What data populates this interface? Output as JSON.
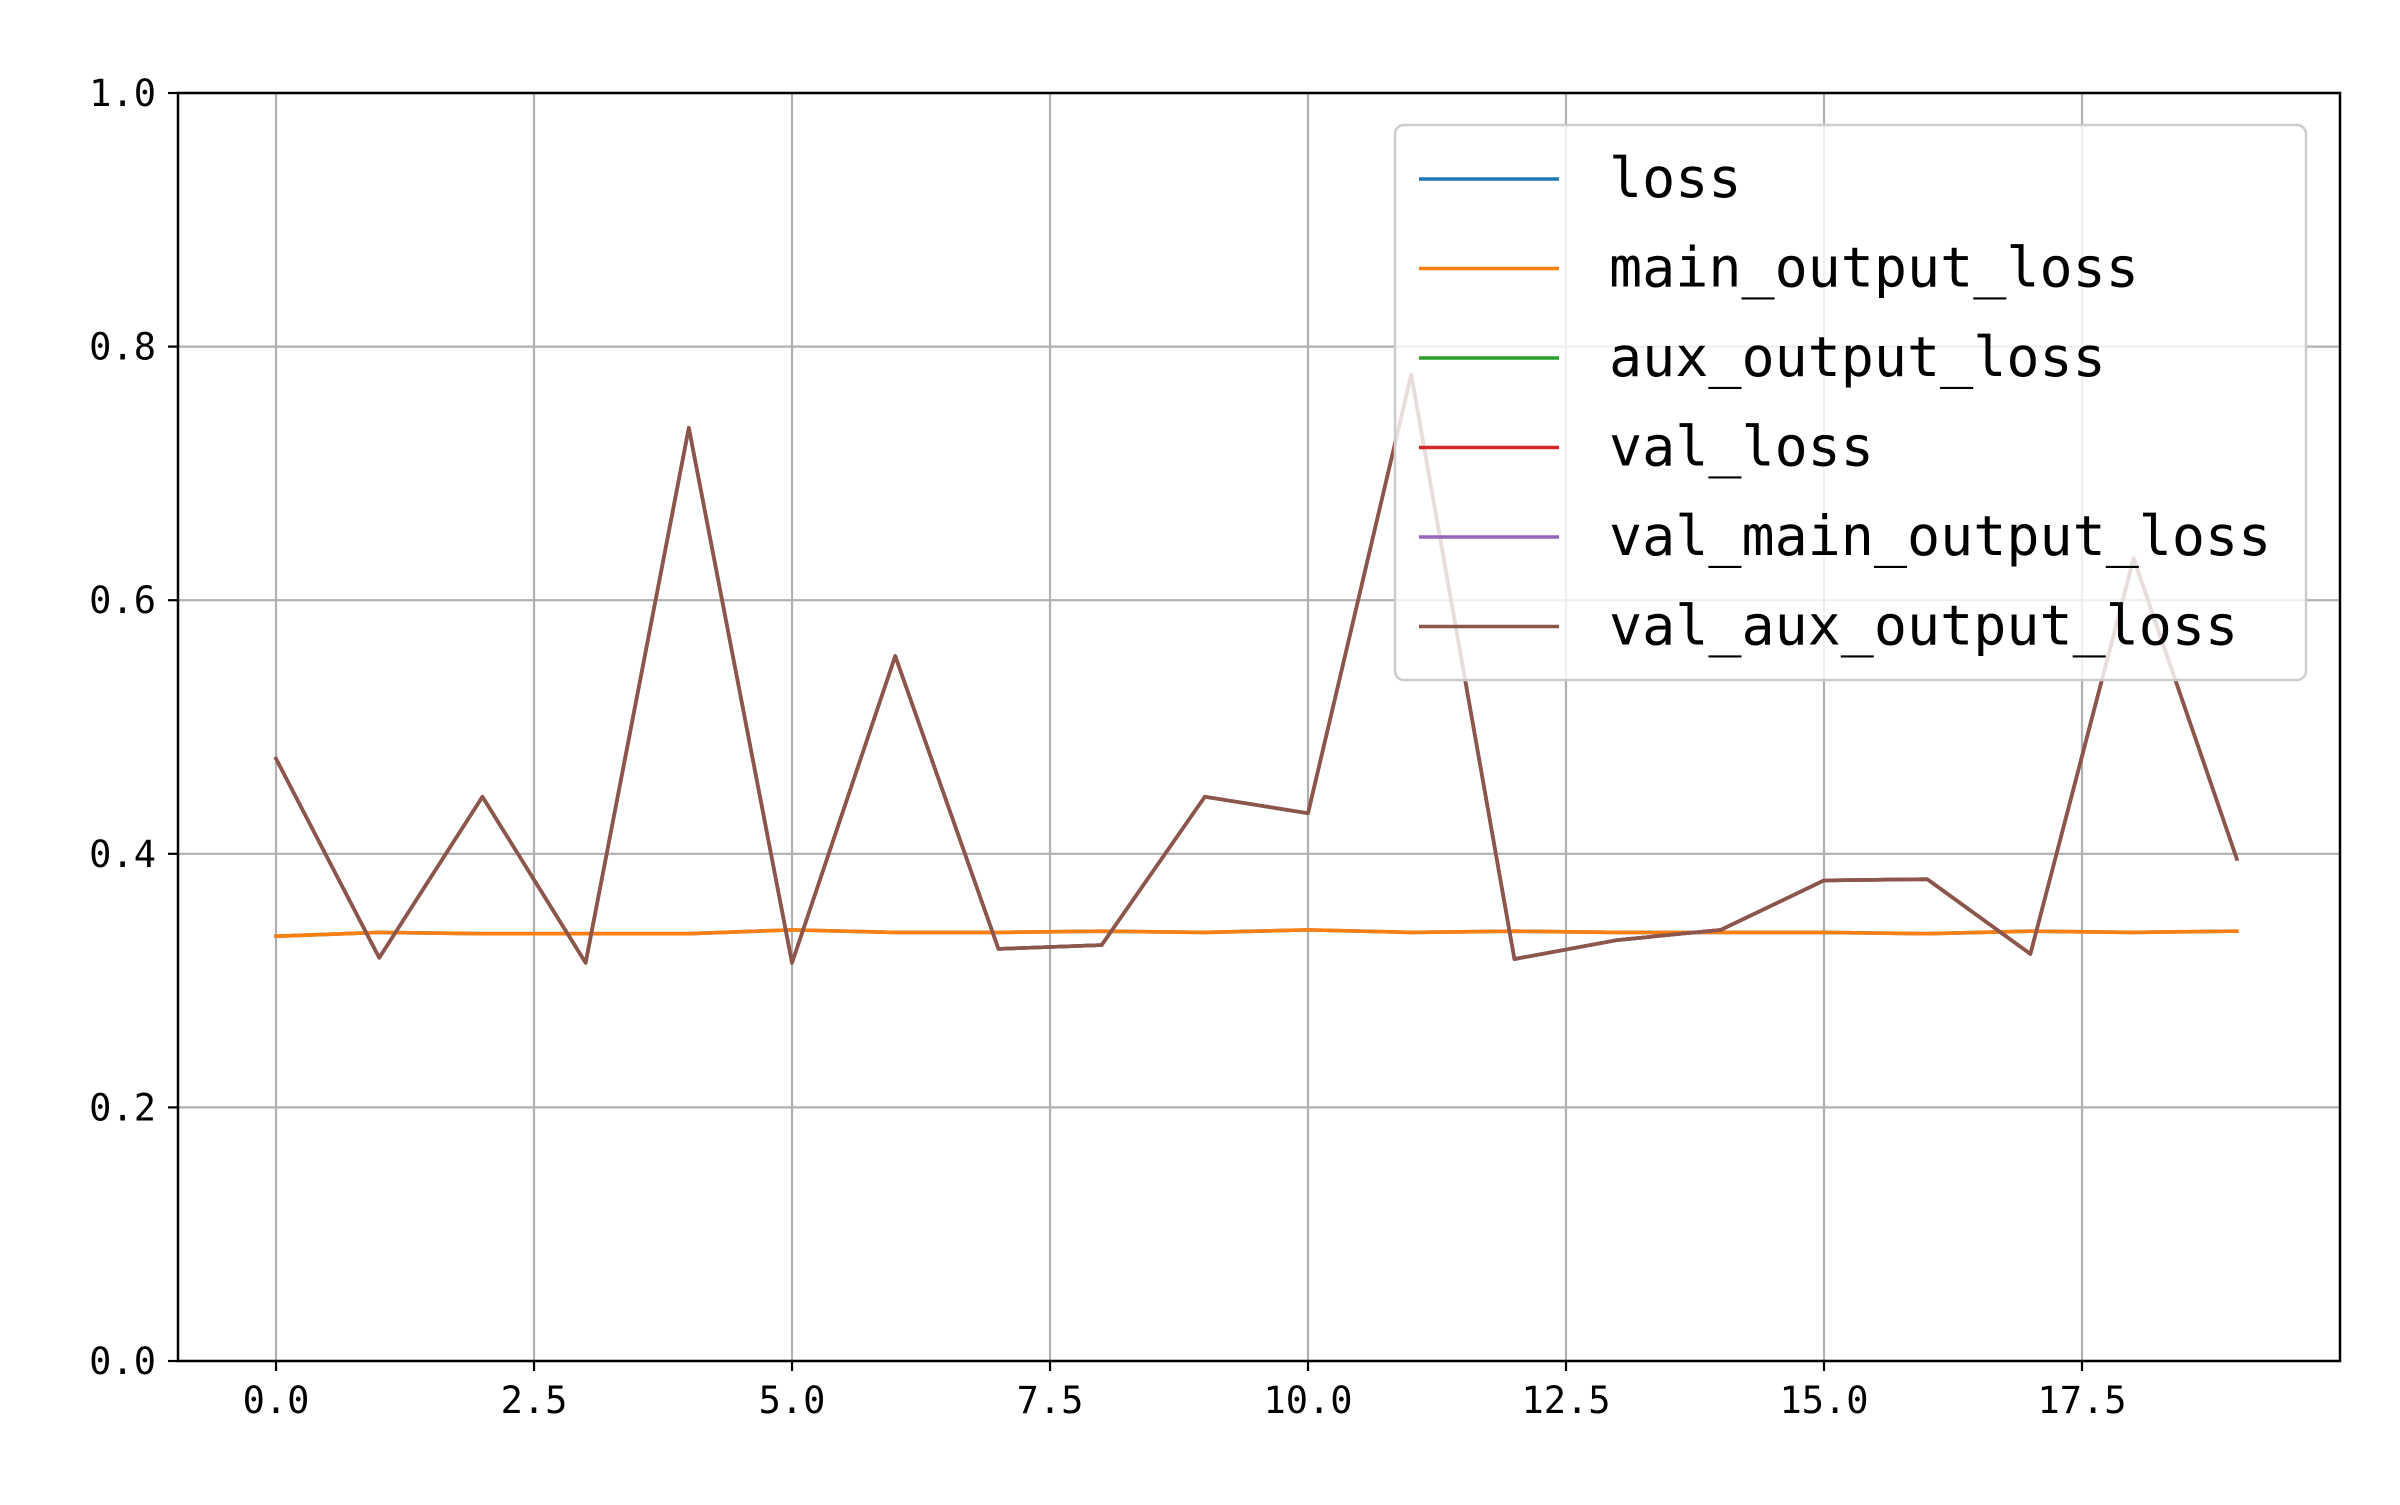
{
  "chart_data": {
    "type": "line",
    "title": "",
    "xlabel": "",
    "ylabel": "",
    "xlim": [
      -0.95,
      20
    ],
    "ylim": [
      0.0,
      1.0
    ],
    "x_ticks": [
      0.0,
      2.5,
      5.0,
      7.5,
      10.0,
      12.5,
      15.0,
      17.5
    ],
    "x_tick_labels": [
      "0.0",
      "2.5",
      "5.0",
      "7.5",
      "10.0",
      "12.5",
      "15.0",
      "17.5"
    ],
    "y_ticks": [
      0.0,
      0.2,
      0.4,
      0.6,
      0.8,
      1.0
    ],
    "y_tick_labels": [
      "0.0",
      "0.2",
      "0.4",
      "0.6",
      "0.8",
      "1.0"
    ],
    "grid": true,
    "legend_position": "top-right",
    "x": [
      0,
      1,
      2,
      3,
      4,
      5,
      6,
      7,
      8,
      9,
      10,
      11,
      12,
      13,
      14,
      15,
      16,
      17,
      18,
      19
    ],
    "series": [
      {
        "name": "loss",
        "color": "#1f77b4",
        "values": [
          0.335,
          0.338,
          0.337,
          0.337,
          0.337,
          0.34,
          0.338,
          0.338,
          0.339,
          0.338,
          0.34,
          0.338,
          0.339,
          0.338,
          0.338,
          0.338,
          0.337,
          0.339,
          0.338,
          0.339
        ]
      },
      {
        "name": "main_output_loss",
        "color": "#ff7f0e",
        "values": [
          0.335,
          0.338,
          0.337,
          0.337,
          0.337,
          0.34,
          0.338,
          0.338,
          0.339,
          0.338,
          0.34,
          0.338,
          0.339,
          0.338,
          0.338,
          0.338,
          0.337,
          0.339,
          0.338,
          0.339
        ]
      },
      {
        "name": "aux_output_loss",
        "color": "#2ca02c",
        "values": [
          0.475,
          0.318,
          0.445,
          0.314,
          0.736,
          0.314,
          0.556,
          0.325,
          0.328,
          0.445,
          0.432,
          0.778,
          0.317,
          0.332,
          0.34,
          0.379,
          0.38,
          0.321,
          0.633,
          0.396
        ]
      },
      {
        "name": "val_loss",
        "color": "#d62728",
        "values": [
          0.475,
          0.318,
          0.445,
          0.314,
          0.736,
          0.314,
          0.556,
          0.325,
          0.328,
          0.445,
          0.432,
          0.778,
          0.317,
          0.332,
          0.34,
          0.379,
          0.38,
          0.321,
          0.633,
          0.396
        ]
      },
      {
        "name": "val_main_output_loss",
        "color": "#9467bd",
        "values": [
          0.475,
          0.318,
          0.445,
          0.314,
          0.736,
          0.314,
          0.556,
          0.325,
          0.328,
          0.445,
          0.432,
          0.778,
          0.317,
          0.332,
          0.34,
          0.379,
          0.38,
          0.321,
          0.633,
          0.396
        ]
      },
      {
        "name": "val_aux_output_loss",
        "color": "#8c564b",
        "values": [
          0.475,
          0.318,
          0.445,
          0.314,
          0.736,
          0.314,
          0.556,
          0.325,
          0.328,
          0.445,
          0.432,
          0.778,
          0.317,
          0.332,
          0.34,
          0.379,
          0.38,
          0.321,
          0.633,
          0.396
        ]
      }
    ]
  }
}
